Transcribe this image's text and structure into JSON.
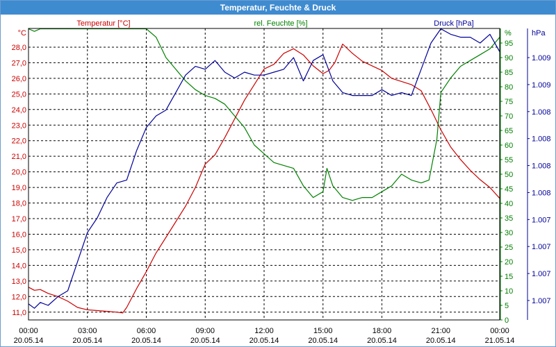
{
  "window": {
    "title": "Temperatur, Feuchte & Druck"
  },
  "chart_data": {
    "type": "line",
    "title": "Temperatur, Feuchte & Druck",
    "grid": true,
    "x_ticks": [
      {
        "time": "00:00",
        "date": "20.05.14"
      },
      {
        "time": "03:00",
        "date": "20.05.14"
      },
      {
        "time": "06:00",
        "date": "20.05.14"
      },
      {
        "time": "09:00",
        "date": "20.05.14"
      },
      {
        "time": "12:00",
        "date": "20.05.14"
      },
      {
        "time": "15:00",
        "date": "20.05.14"
      },
      {
        "time": "18:00",
        "date": "20.05.14"
      },
      {
        "time": "21:00",
        "date": "20.05.14"
      },
      {
        "time": "00:00",
        "date": "21.05.14"
      }
    ],
    "xlim_hours": [
      0,
      24
    ],
    "axes": {
      "temperature": {
        "label": "Temperatur [°C]",
        "unit": "°C",
        "color": "#cc0000",
        "ylim": [
          10.5,
          29.2
        ],
        "ticks": [
          "11,0",
          "12,0",
          "13,0",
          "14,0",
          "15,0",
          "16,0",
          "17,0",
          "18,0",
          "19,0",
          "20,0",
          "21,0",
          "22,0",
          "23,0",
          "24,0",
          "25,0",
          "26,0",
          "27,0",
          "28,0"
        ]
      },
      "humidity": {
        "label": "rel. Feuchte [%]",
        "unit": "%",
        "color": "#008000",
        "ylim": [
          0,
          100
        ],
        "ticks": [
          "0",
          "5",
          "10",
          "15",
          "20",
          "25",
          "30",
          "35",
          "40",
          "45",
          "50",
          "55",
          "60",
          "65",
          "70",
          "75",
          "80",
          "85",
          "90",
          "95"
        ]
      },
      "pressure": {
        "label": "Druck [hPa]",
        "unit": "hPa",
        "color": "#000099",
        "ticks": [
          "1.007",
          "1.007",
          "1.007",
          "1.007",
          "1.008",
          "1.008",
          "1.008",
          "1.008",
          "1.009",
          "1.009"
        ]
      }
    },
    "series": [
      {
        "name": "Temperatur [°C]",
        "axis": "temperature",
        "color": "#cc0000",
        "x": [
          0,
          0.3,
          0.6,
          1.0,
          1.5,
          2.0,
          2.5,
          3.0,
          3.5,
          4.0,
          4.5,
          4.8,
          5.0,
          5.5,
          6.0,
          6.5,
          7.0,
          7.5,
          8.0,
          8.5,
          9.0,
          9.5,
          10.0,
          10.5,
          11.0,
          11.5,
          12.0,
          12.5,
          13.0,
          13.5,
          14.0,
          14.5,
          15.0,
          15.3,
          15.6,
          16.0,
          16.5,
          17.0,
          17.5,
          18.0,
          18.5,
          19.0,
          19.5,
          20.0,
          20.5,
          21.0,
          21.5,
          22.0,
          22.5,
          23.0,
          23.5,
          24.0
        ],
        "y": [
          12.6,
          12.4,
          12.45,
          12.2,
          12.0,
          11.7,
          11.3,
          11.15,
          11.1,
          11.05,
          11.0,
          10.95,
          11.3,
          12.5,
          13.6,
          14.8,
          15.8,
          16.8,
          17.8,
          19.0,
          20.5,
          21.1,
          22.2,
          23.4,
          24.6,
          25.6,
          26.6,
          26.9,
          27.6,
          27.9,
          27.5,
          26.8,
          26.3,
          26.5,
          27.0,
          28.2,
          27.6,
          27.1,
          26.8,
          26.5,
          26.0,
          25.8,
          25.6,
          25.2,
          24.0,
          22.7,
          21.6,
          20.8,
          20.1,
          19.5,
          19.0,
          18.3
        ]
      },
      {
        "name": "rel. Feuchte [%]",
        "axis": "humidity",
        "color": "#008000",
        "x": [
          0,
          0.3,
          0.6,
          1.0,
          2.0,
          3.0,
          4.0,
          5.0,
          5.5,
          6.0,
          6.5,
          7.0,
          7.5,
          8.0,
          8.5,
          9.0,
          9.5,
          10.0,
          10.5,
          11.0,
          11.5,
          12.0,
          12.5,
          13.0,
          13.5,
          14.0,
          14.5,
          15.0,
          15.2,
          15.5,
          16.0,
          16.5,
          17.0,
          17.5,
          18.0,
          18.5,
          19.0,
          19.5,
          20.0,
          20.4,
          20.8,
          21.0,
          21.5,
          22.0,
          22.5,
          23.0,
          23.5,
          24.0
        ],
        "y": [
          100,
          99,
          100,
          100,
          100,
          100,
          100,
          100,
          100,
          100,
          97,
          90,
          86,
          82,
          79,
          77,
          76,
          74,
          70,
          66,
          60,
          57,
          54,
          53,
          52,
          46,
          42,
          44,
          52,
          46,
          42,
          41,
          42,
          42,
          44,
          46,
          50,
          48,
          47,
          48,
          62,
          78,
          83,
          87,
          89,
          91,
          93,
          97
        ]
      },
      {
        "name": "Druck [hPa]",
        "axis": "pressure",
        "color": "#000099",
        "x": [
          0,
          0.3,
          0.6,
          1.0,
          1.5,
          2.0,
          2.5,
          3.0,
          3.5,
          4.0,
          4.5,
          5.0,
          5.5,
          6.0,
          6.5,
          7.0,
          7.5,
          8.0,
          8.5,
          9.0,
          9.5,
          10.0,
          10.5,
          11.0,
          11.5,
          12.0,
          12.5,
          13.0,
          13.5,
          14.0,
          14.5,
          15.0,
          15.5,
          16.0,
          16.5,
          17.0,
          17.5,
          18.0,
          18.5,
          19.0,
          19.5,
          20.0,
          20.5,
          21.0,
          21.5,
          22.0,
          22.5,
          23.0,
          23.5,
          24.0
        ],
        "y": [
          0.055,
          0.04,
          0.06,
          0.05,
          0.08,
          0.1,
          0.2,
          0.3,
          0.35,
          0.42,
          0.47,
          0.48,
          0.58,
          0.66,
          0.7,
          0.72,
          0.78,
          0.84,
          0.87,
          0.86,
          0.89,
          0.85,
          0.83,
          0.85,
          0.84,
          0.84,
          0.85,
          0.86,
          0.9,
          0.82,
          0.89,
          0.91,
          0.82,
          0.78,
          0.77,
          0.77,
          0.77,
          0.79,
          0.77,
          0.78,
          0.77,
          0.86,
          0.95,
          1.0,
          0.98,
          0.97,
          0.97,
          0.95,
          0.98,
          0.92
        ]
      }
    ]
  }
}
